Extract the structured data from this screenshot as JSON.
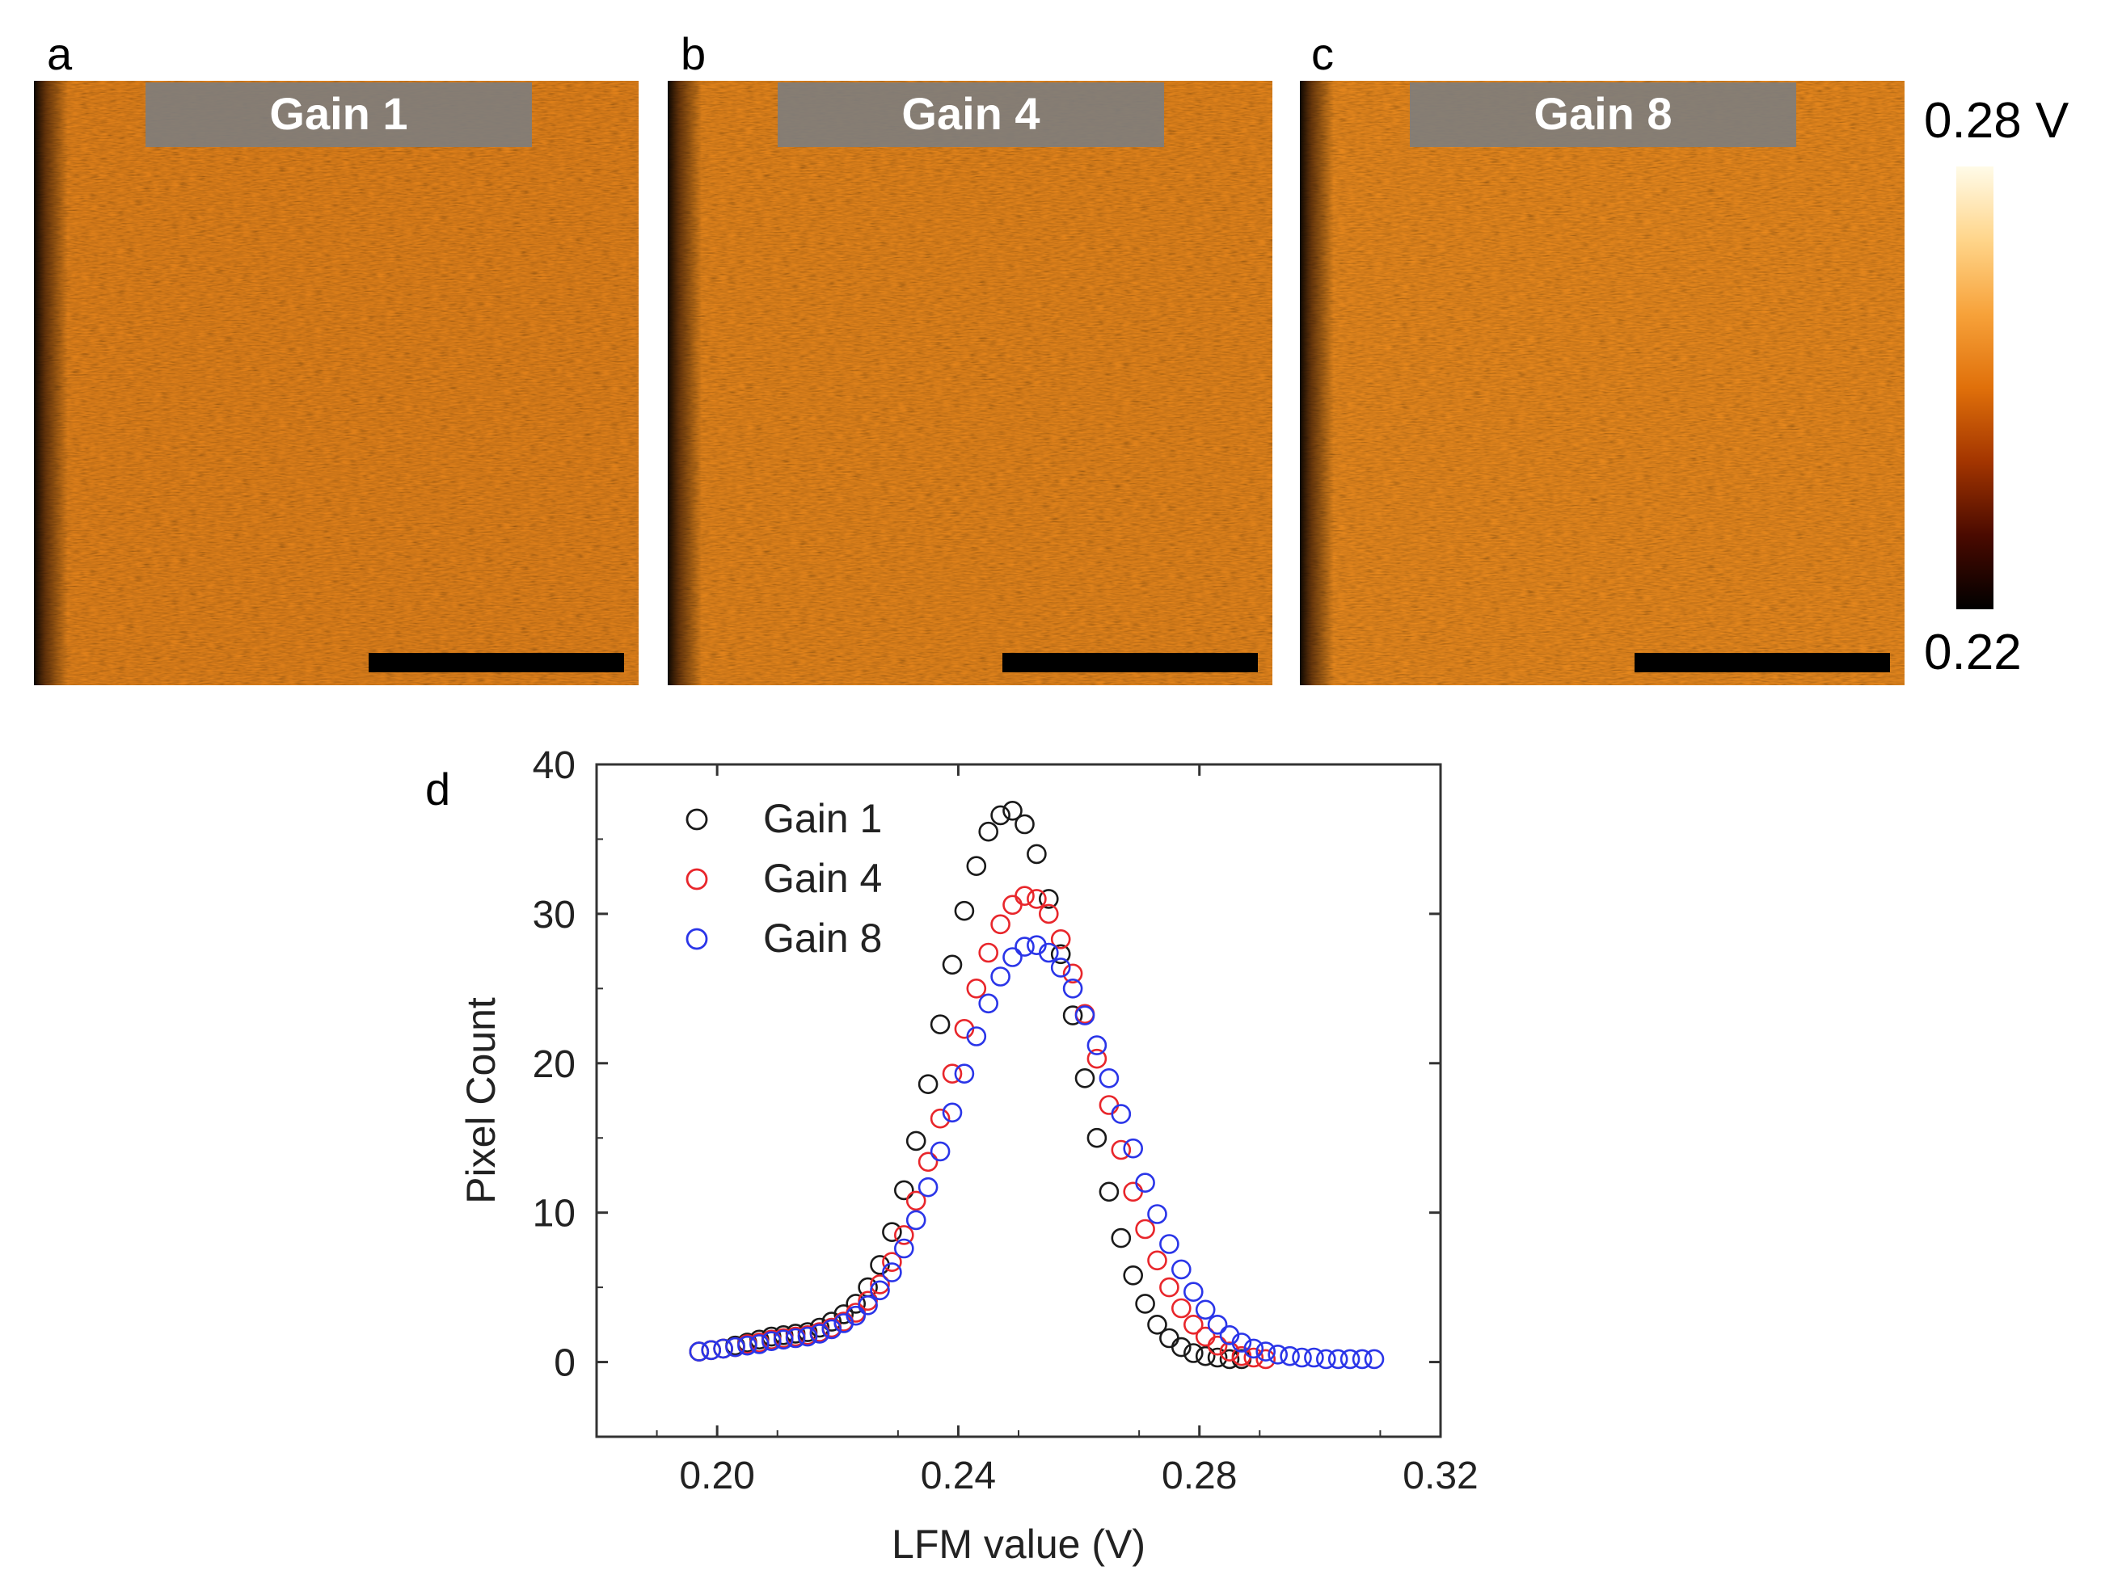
{
  "panels": [
    {
      "letter": "a",
      "label": "Gain 1",
      "brightness": 0.56
    },
    {
      "letter": "b",
      "label": "Gain 4",
      "brightness": 0.6
    },
    {
      "letter": "c",
      "label": "Gain 8",
      "brightness": 0.66
    }
  ],
  "colorbar": {
    "max_label": "0.28 V",
    "min_label": "0.22",
    "max_value": 0.28,
    "min_value": 0.22,
    "colormap": [
      "#000000",
      "#4a0a00",
      "#a33500",
      "#e0700a",
      "#f7a23a",
      "#ffd58a",
      "#fffbe8"
    ]
  },
  "chart_data": {
    "type": "scatter",
    "panel_letter": "d",
    "xlabel": "LFM value (V)",
    "ylabel": "Pixel Count",
    "xlim": [
      0.18,
      0.32
    ],
    "ylim": [
      -5,
      40
    ],
    "xticks": [
      0.2,
      0.24,
      0.28,
      0.32
    ],
    "xtick_labels": [
      "0.20",
      "0.24",
      "0.28",
      "0.32"
    ],
    "yticks": [
      0,
      10,
      20,
      30,
      40
    ],
    "ytick_labels": [
      "0",
      "10",
      "20",
      "30",
      "40"
    ],
    "legend_position": "top-left",
    "series": [
      {
        "name": "Gain 1",
        "color": "#1a1a1a",
        "x": [
          0.197,
          0.199,
          0.201,
          0.203,
          0.205,
          0.207,
          0.209,
          0.211,
          0.213,
          0.215,
          0.217,
          0.219,
          0.221,
          0.223,
          0.225,
          0.227,
          0.229,
          0.231,
          0.233,
          0.235,
          0.237,
          0.239,
          0.241,
          0.243,
          0.245,
          0.247,
          0.249,
          0.251,
          0.253,
          0.255,
          0.257,
          0.259,
          0.261,
          0.263,
          0.265,
          0.267,
          0.269,
          0.271,
          0.273,
          0.275,
          0.277,
          0.279,
          0.281,
          0.283,
          0.285,
          0.287
        ],
        "y": [
          0.7,
          0.8,
          0.9,
          1.1,
          1.3,
          1.5,
          1.7,
          1.8,
          1.9,
          2.0,
          2.3,
          2.7,
          3.2,
          3.9,
          5.0,
          6.5,
          8.7,
          11.5,
          14.8,
          18.6,
          22.6,
          26.6,
          30.2,
          33.2,
          35.5,
          36.6,
          36.9,
          36.0,
          34.0,
          31.0,
          27.3,
          23.2,
          19.0,
          15.0,
          11.4,
          8.3,
          5.8,
          3.9,
          2.5,
          1.6,
          1.0,
          0.6,
          0.4,
          0.3,
          0.2,
          0.2
        ]
      },
      {
        "name": "Gain 4",
        "color": "#e8262b",
        "x": [
          0.197,
          0.199,
          0.201,
          0.203,
          0.205,
          0.207,
          0.209,
          0.211,
          0.213,
          0.215,
          0.217,
          0.219,
          0.221,
          0.223,
          0.225,
          0.227,
          0.229,
          0.231,
          0.233,
          0.235,
          0.237,
          0.239,
          0.241,
          0.243,
          0.245,
          0.247,
          0.249,
          0.251,
          0.253,
          0.255,
          0.257,
          0.259,
          0.261,
          0.263,
          0.265,
          0.267,
          0.269,
          0.271,
          0.273,
          0.275,
          0.277,
          0.279,
          0.281,
          0.283,
          0.285,
          0.287,
          0.289,
          0.291
        ],
        "y": [
          0.7,
          0.8,
          0.9,
          1.0,
          1.2,
          1.3,
          1.5,
          1.6,
          1.7,
          1.8,
          2.0,
          2.3,
          2.7,
          3.3,
          4.1,
          5.2,
          6.7,
          8.5,
          10.8,
          13.4,
          16.3,
          19.3,
          22.3,
          25.0,
          27.4,
          29.3,
          30.6,
          31.2,
          31.0,
          30.0,
          28.3,
          26.0,
          23.3,
          20.3,
          17.2,
          14.2,
          11.4,
          8.9,
          6.8,
          5.0,
          3.6,
          2.5,
          1.7,
          1.1,
          0.7,
          0.4,
          0.3,
          0.2
        ]
      },
      {
        "name": "Gain 8",
        "color": "#2a35e8",
        "x": [
          0.197,
          0.199,
          0.201,
          0.203,
          0.205,
          0.207,
          0.209,
          0.211,
          0.213,
          0.215,
          0.217,
          0.219,
          0.221,
          0.223,
          0.225,
          0.227,
          0.229,
          0.231,
          0.233,
          0.235,
          0.237,
          0.239,
          0.241,
          0.243,
          0.245,
          0.247,
          0.249,
          0.251,
          0.253,
          0.255,
          0.257,
          0.259,
          0.261,
          0.263,
          0.265,
          0.267,
          0.269,
          0.271,
          0.273,
          0.275,
          0.277,
          0.279,
          0.281,
          0.283,
          0.285,
          0.287,
          0.289,
          0.291,
          0.293,
          0.295,
          0.297,
          0.299,
          0.301,
          0.303,
          0.305,
          0.307,
          0.309
        ],
        "y": [
          0.7,
          0.8,
          0.9,
          1.0,
          1.1,
          1.2,
          1.4,
          1.5,
          1.6,
          1.7,
          1.9,
          2.2,
          2.6,
          3.1,
          3.8,
          4.8,
          6.0,
          7.6,
          9.5,
          11.7,
          14.1,
          16.7,
          19.3,
          21.8,
          24.0,
          25.8,
          27.1,
          27.8,
          27.9,
          27.4,
          26.4,
          25.0,
          23.2,
          21.2,
          19.0,
          16.6,
          14.3,
          12.0,
          9.9,
          7.9,
          6.2,
          4.7,
          3.5,
          2.5,
          1.8,
          1.3,
          0.9,
          0.7,
          0.5,
          0.4,
          0.3,
          0.3,
          0.2,
          0.2,
          0.2,
          0.2,
          0.2
        ]
      }
    ]
  }
}
